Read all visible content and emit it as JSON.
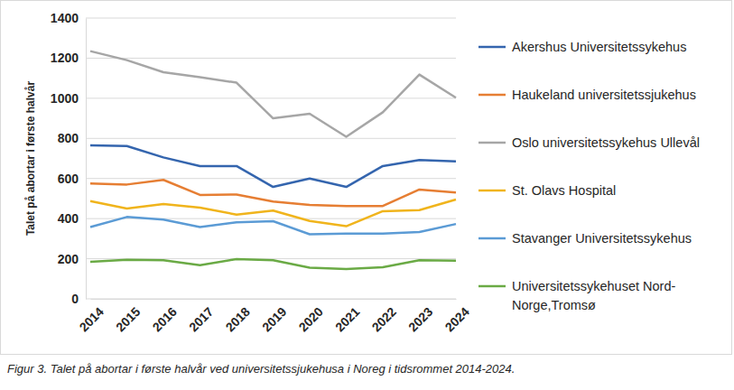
{
  "chart_data": {
    "type": "line",
    "title": "Figur 3. Talet på abortar i første halvår ved universitetssjukehusa i Noreg i tidsrommet 2014-2024.",
    "y_label": "Talet på abortar i første halvår",
    "categories": [
      "2014",
      "2015",
      "2016",
      "2017",
      "2018",
      "2019",
      "2020",
      "2021",
      "2022",
      "2023",
      "2024"
    ],
    "series": [
      {
        "name": "Akershus Universitetssykehus",
        "color": "#3465ae",
        "values": [
          765,
          762,
          705,
          662,
          662,
          558,
          600,
          558,
          662,
          692,
          685
        ]
      },
      {
        "name": "Haukeland universitetssjukehus",
        "color": "#e67e33",
        "values": [
          575,
          570,
          593,
          518,
          520,
          485,
          468,
          463,
          463,
          545,
          530
        ]
      },
      {
        "name": "Oslo universitetssykehus Ullevål",
        "color": "#a6a6a6",
        "values": [
          1235,
          1190,
          1130,
          1105,
          1078,
          900,
          923,
          808,
          930,
          1118,
          1003
        ]
      },
      {
        "name": "St. Olavs Hospital",
        "color": "#f0b41c",
        "values": [
          487,
          450,
          473,
          455,
          420,
          440,
          388,
          362,
          437,
          442,
          495
        ]
      },
      {
        "name": "Stavanger Universitetssykehus",
        "color": "#5b9bd5",
        "values": [
          358,
          408,
          395,
          358,
          382,
          387,
          322,
          325,
          325,
          333,
          373
        ]
      },
      {
        "name": "Universitetssykehuset Nord-Norge,Tromsø",
        "color": "#6aaa45",
        "values": [
          185,
          195,
          192,
          168,
          198,
          192,
          155,
          148,
          158,
          192,
          190
        ]
      }
    ],
    "ylim": [
      0,
      1400
    ],
    "yticks": [
      0,
      200,
      400,
      600,
      800,
      1000,
      1200,
      1400
    ],
    "grid": true,
    "legend": "right"
  }
}
